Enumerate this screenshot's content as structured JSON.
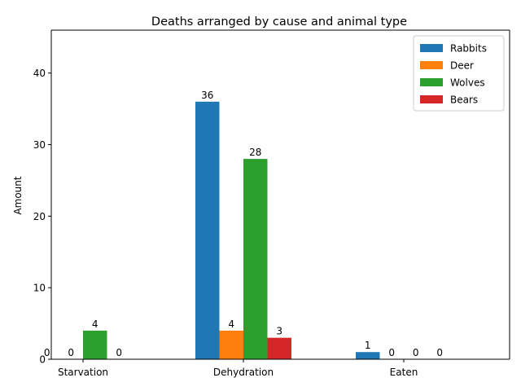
{
  "chart_data": {
    "type": "bar",
    "title": "Deaths arranged by cause and animal type",
    "xlabel": "",
    "ylabel": "Amount",
    "categories": [
      "Starvation",
      "Dehydration",
      "Eaten"
    ],
    "series": [
      {
        "name": "Rabbits",
        "color": "#1f77b4",
        "values": [
          0,
          36,
          1
        ]
      },
      {
        "name": "Deer",
        "color": "#ff7f0e",
        "values": [
          0,
          4,
          0
        ]
      },
      {
        "name": "Wolves",
        "color": "#2ca02c",
        "values": [
          4,
          28,
          0
        ]
      },
      {
        "name": "Bears",
        "color": "#d62728",
        "values": [
          0,
          3,
          0
        ]
      }
    ],
    "ylim": [
      0,
      46
    ],
    "yticks": [
      0,
      10,
      20,
      30,
      40
    ],
    "grid": false,
    "legend_position": "top-right"
  }
}
